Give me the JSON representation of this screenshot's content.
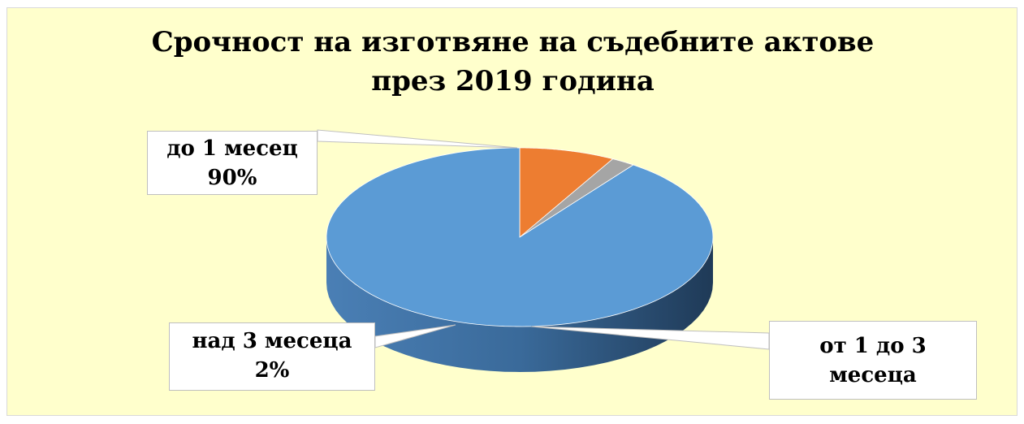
{
  "chart_data": {
    "type": "pie",
    "title": [
      "Срочност на изготвяне на съдебните актове",
      "през 2019 година"
    ],
    "slices": [
      {
        "name": "до 1 месец",
        "value": 90,
        "value_label": "90%",
        "color": "#5b9bd5"
      },
      {
        "name": "от 1 до 3 месеца",
        "value": 8,
        "value_label": "",
        "color": "#ed7d31"
      },
      {
        "name": "над 3 месеца",
        "value": 2,
        "value_label": "2%",
        "color": "#a5a5a5"
      }
    ],
    "style": "3d-pie",
    "legend": "none"
  },
  "labels": {
    "big": {
      "line1": "до 1 месец",
      "line2": "90%"
    },
    "small": {
      "line1": "над 3 месеца",
      "line2": "2%"
    },
    "mid": {
      "line1": "от 1 до 3",
      "line2": "месеца"
    }
  },
  "colors": {
    "background": "#ffffcc"
  }
}
